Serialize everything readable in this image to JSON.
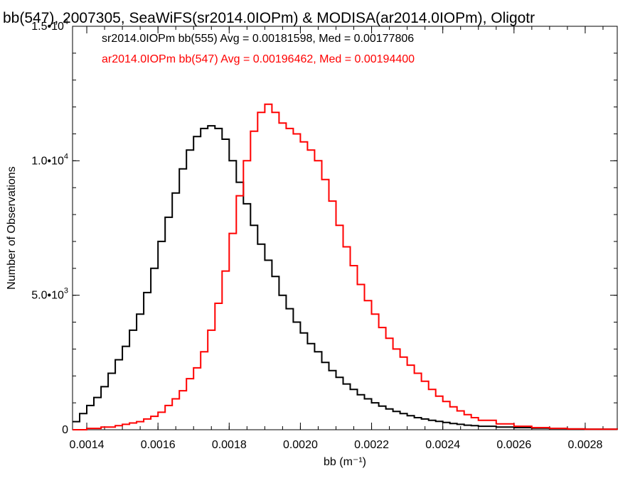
{
  "chart_data": {
    "type": "line",
    "title": "bb(547), 2007305, SeaWiFS(sr2014.0IOPm) & MODISA(ar2014.0IOPm), Oligotr",
    "xlabel": "bb (m⁻¹)",
    "ylabel": "Number of Observations",
    "xlim": [
      0.00136,
      0.00289
    ],
    "ylim": [
      0,
      15000
    ],
    "xticks": [
      {
        "value": 0.0014,
        "label": "0.0014"
      },
      {
        "value": 0.0016,
        "label": "0.0016"
      },
      {
        "value": 0.0018,
        "label": "0.0018"
      },
      {
        "value": 0.002,
        "label": "0.0020"
      },
      {
        "value": 0.0022,
        "label": "0.0022"
      },
      {
        "value": 0.0024,
        "label": "0.0024"
      },
      {
        "value": 0.0026,
        "label": "0.0026"
      },
      {
        "value": 0.0028,
        "label": "0.0028"
      }
    ],
    "yticks": [
      {
        "value": 0,
        "mantissa": "0",
        "exponent": ""
      },
      {
        "value": 5000,
        "mantissa": "5.0•10",
        "exponent": "3"
      },
      {
        "value": 10000,
        "mantissa": "1.0•10",
        "exponent": "4"
      },
      {
        "value": 15000,
        "mantissa": "1.5•10",
        "exponent": "4"
      }
    ],
    "legend_placement": "top-left",
    "series": [
      {
        "name": "sr2014.0IOPm bb(555) Avg = 0.00181598, Med = 0.00177806",
        "color": "#000000",
        "x": [
          0.00136,
          0.00138,
          0.0014,
          0.00142,
          0.00144,
          0.00146,
          0.00148,
          0.0015,
          0.00152,
          0.00154,
          0.00156,
          0.00158,
          0.0016,
          0.00162,
          0.00164,
          0.00166,
          0.00168,
          0.0017,
          0.00172,
          0.00174,
          0.00176,
          0.00178,
          0.0018,
          0.00182,
          0.00184,
          0.00186,
          0.00188,
          0.0019,
          0.00192,
          0.00194,
          0.00196,
          0.00198,
          0.002,
          0.00202,
          0.00204,
          0.00206,
          0.00208,
          0.0021,
          0.00212,
          0.00214,
          0.00216,
          0.00218,
          0.0022,
          0.00222,
          0.00224,
          0.00226,
          0.00228,
          0.0023,
          0.00232,
          0.00234,
          0.00236,
          0.00238,
          0.0024,
          0.00242,
          0.00244,
          0.00246,
          0.00248,
          0.0025,
          0.00255,
          0.0026,
          0.00265,
          0.0027,
          0.00275,
          0.0028,
          0.00289
        ],
        "y": [
          300,
          600,
          900,
          1200,
          1600,
          2100,
          2600,
          3100,
          3700,
          4300,
          5100,
          6000,
          7000,
          7900,
          8800,
          9700,
          10400,
          10900,
          11200,
          11300,
          11200,
          10800,
          10000,
          9200,
          8400,
          7600,
          6900,
          6300,
          5700,
          5000,
          4500,
          4000,
          3600,
          3200,
          2900,
          2500,
          2200,
          1950,
          1700,
          1500,
          1300,
          1150,
          1000,
          880,
          770,
          680,
          600,
          520,
          450,
          400,
          350,
          310,
          270,
          230,
          200,
          170,
          150,
          130,
          100,
          80,
          60,
          45,
          30,
          20,
          10
        ]
      },
      {
        "name": "ar2014.0IOPm bb(547) Avg = 0.00196462, Med = 0.00194400",
        "color": "#ff0000",
        "x": [
          0.00136,
          0.0014,
          0.00144,
          0.00148,
          0.0015,
          0.00152,
          0.00154,
          0.00156,
          0.00158,
          0.0016,
          0.00162,
          0.00164,
          0.00166,
          0.00168,
          0.0017,
          0.00172,
          0.00174,
          0.00176,
          0.00178,
          0.0018,
          0.00182,
          0.00184,
          0.00186,
          0.00188,
          0.0019,
          0.00192,
          0.00194,
          0.00196,
          0.00198,
          0.002,
          0.00202,
          0.00204,
          0.00206,
          0.00208,
          0.0021,
          0.00212,
          0.00214,
          0.00216,
          0.00218,
          0.0022,
          0.00222,
          0.00224,
          0.00226,
          0.00228,
          0.0023,
          0.00232,
          0.00234,
          0.00236,
          0.00238,
          0.0024,
          0.00242,
          0.00244,
          0.00246,
          0.00248,
          0.0025,
          0.00255,
          0.0026,
          0.00265,
          0.0027,
          0.00275,
          0.0028,
          0.00289
        ],
        "y": [
          0,
          50,
          100,
          150,
          200,
          250,
          300,
          400,
          500,
          650,
          900,
          1150,
          1450,
          1900,
          2300,
          2900,
          3700,
          4700,
          5900,
          7300,
          8700,
          10000,
          11100,
          11800,
          12100,
          11800,
          11400,
          11200,
          11000,
          10700,
          10400,
          10000,
          9300,
          8500,
          7600,
          6800,
          6100,
          5400,
          4800,
          4300,
          3800,
          3400,
          3000,
          2700,
          2400,
          2100,
          1800,
          1500,
          1250,
          1050,
          850,
          700,
          560,
          450,
          350,
          220,
          130,
          80,
          50,
          30,
          20,
          10
        ]
      }
    ]
  }
}
